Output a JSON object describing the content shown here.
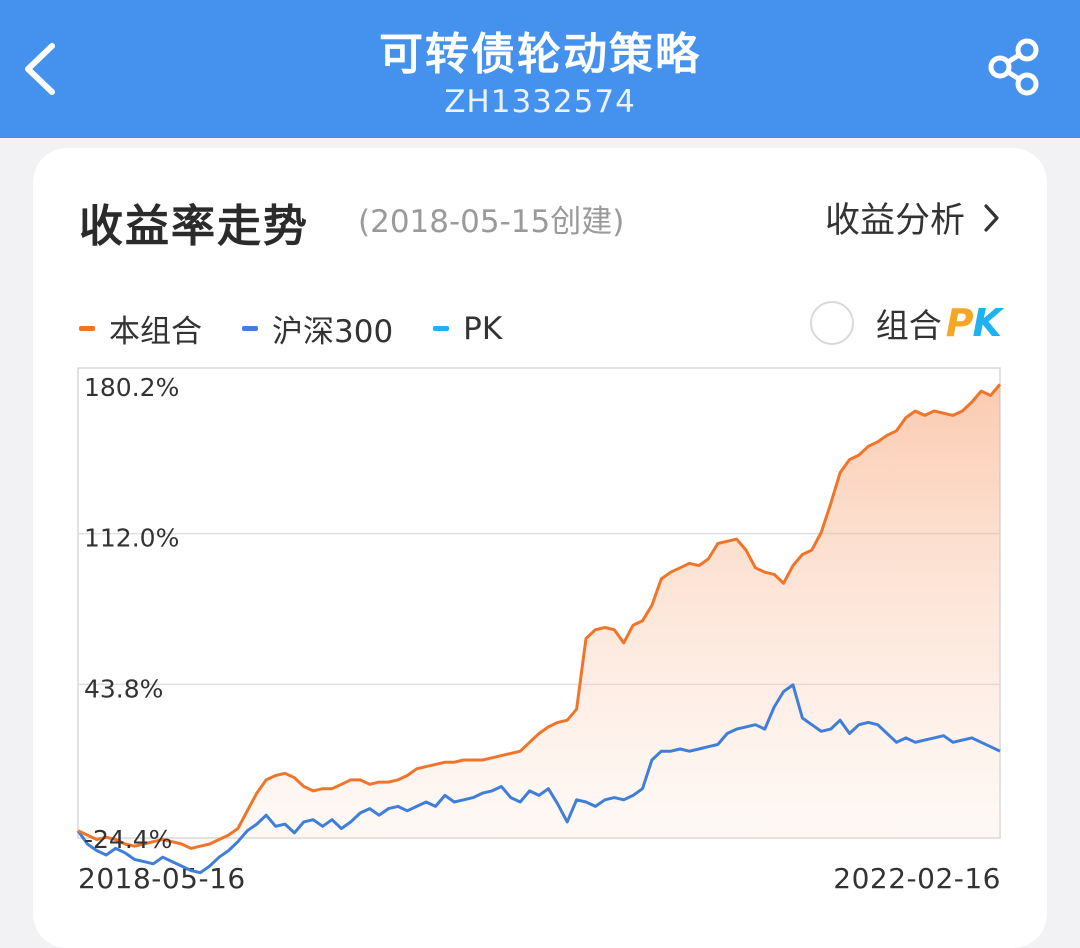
{
  "header": {
    "title": "可转债轮动策略",
    "code": "ZH1332574",
    "back_icon": "chevron-left-icon",
    "share_icon": "share-icon"
  },
  "section": {
    "title": "收益率走势",
    "created": "(2018-05-15创建)",
    "analysis_link": "收益分析",
    "analysis_icon": "chevron-right-icon"
  },
  "legend": {
    "items": [
      {
        "label": "本组合",
        "color": "#f0752a"
      },
      {
        "label": "沪深300",
        "color": "#3f7fd9"
      },
      {
        "label": "PK",
        "color": "#1fb2f0"
      }
    ],
    "pk_toggle_label": "组合",
    "pk_mark": "PK",
    "pk_colors": [
      "#f5a623",
      "#1fb2f0"
    ]
  },
  "chart_data": {
    "type": "line",
    "x_start": "2018-05-16",
    "x_end": "2022-02-16",
    "y_ticks": [
      "180.2%",
      "112.0%",
      "43.8%",
      "-24.4%"
    ],
    "ylim": [
      -24.4,
      180.2
    ],
    "grid": true,
    "series": [
      {
        "name": "本组合",
        "color": "#f0752a",
        "fill": true,
        "values": [
          -22,
          -24,
          -26,
          -25,
          -26,
          -28,
          -29,
          -28,
          -27,
          -26,
          -27,
          -28,
          -30,
          -29,
          -28,
          -26,
          -24,
          -21,
          -13,
          -5,
          1,
          3,
          4,
          2,
          -2,
          -4,
          -3,
          -3,
          -1,
          1,
          1,
          -1,
          0,
          0,
          1,
          3,
          6,
          7,
          8,
          9,
          9,
          10,
          10,
          10,
          11,
          12,
          13,
          14,
          18,
          22,
          25,
          27,
          28,
          33,
          65,
          69,
          70,
          69,
          63,
          71,
          73,
          80,
          92,
          95,
          97,
          99,
          98,
          101,
          108,
          109,
          110,
          105,
          97,
          95,
          94,
          90,
          98,
          103,
          105,
          113,
          126,
          140,
          146,
          148,
          152,
          154,
          157,
          159,
          165,
          168,
          166,
          168,
          167,
          166,
          168,
          172,
          177,
          175,
          180
        ]
      },
      {
        "name": "沪深300",
        "color": "#3f7fd9",
        "fill": false,
        "values": [
          -22,
          -28,
          -31,
          -33,
          -30,
          -32,
          -35,
          -36,
          -37,
          -34,
          -36,
          -38,
          -40,
          -41,
          -38,
          -34,
          -31,
          -27,
          -22,
          -19,
          -15,
          -20,
          -19,
          -23,
          -18,
          -17,
          -20,
          -17,
          -21,
          -18,
          -14,
          -12,
          -15,
          -12,
          -11,
          -13,
          -11,
          -9,
          -11,
          -6,
          -9,
          -8,
          -7,
          -5,
          -4,
          -2,
          -7,
          -9,
          -4,
          -6,
          -3,
          -10,
          -18,
          -8,
          -9,
          -11,
          -8,
          -7,
          -8,
          -6,
          -3,
          10,
          14,
          14,
          15,
          14,
          15,
          16,
          17,
          22,
          24,
          25,
          26,
          24,
          34,
          41,
          44,
          29,
          26,
          23,
          24,
          28,
          22,
          26,
          27,
          26,
          22,
          18,
          20,
          18,
          19,
          20,
          21,
          18,
          19,
          20,
          18,
          16,
          14
        ]
      }
    ]
  }
}
